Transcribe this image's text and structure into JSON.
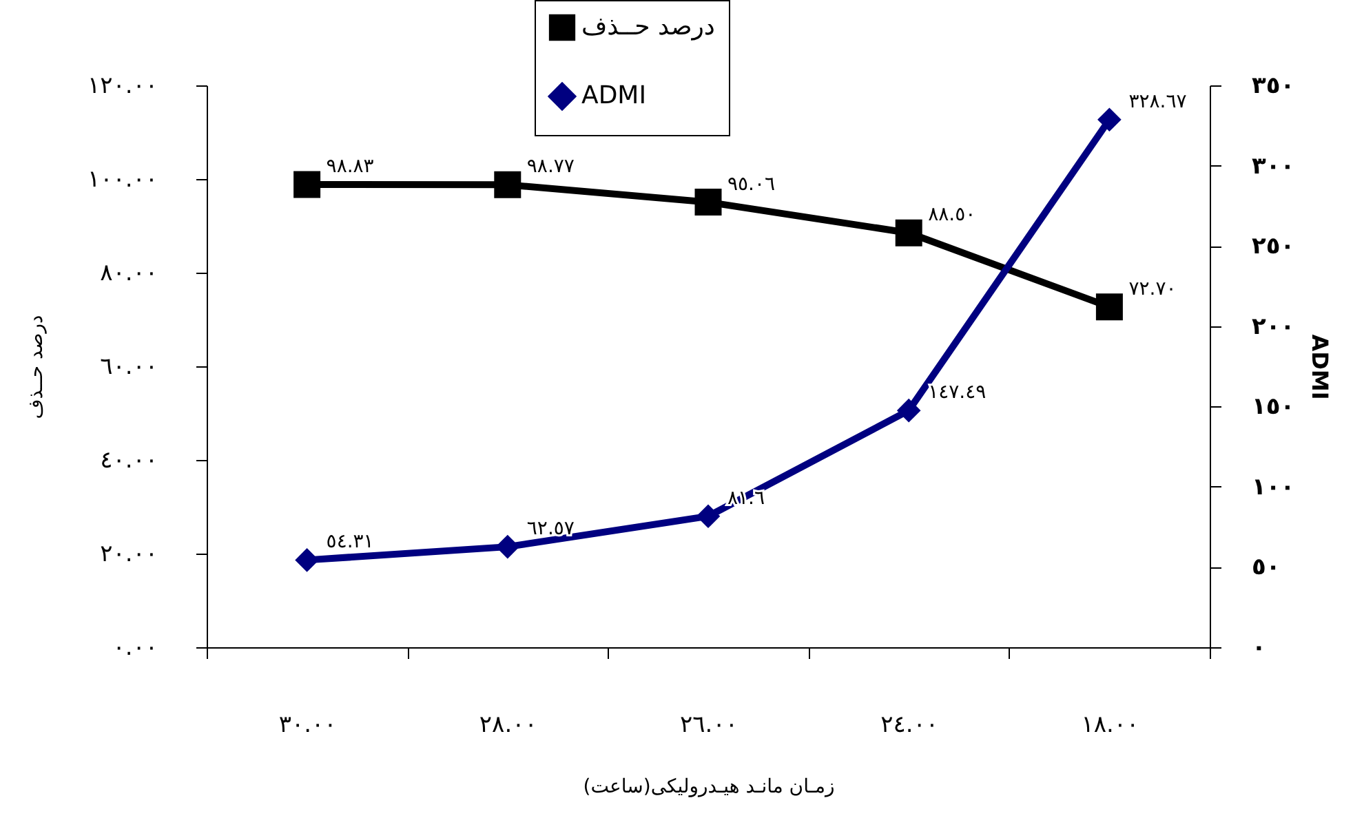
{
  "chart_data": {
    "type": "line",
    "xlabel": "زمـان مانـد هیـدرولیکی(ساعت)",
    "ylabel": "درصد حــذف",
    "y2label": "ADMI",
    "categories": [
      "٣٠.٠٠",
      "٢٨.٠٠",
      "٢٦.٠٠",
      "٢٤.٠٠",
      "١٨.٠٠"
    ],
    "series": [
      {
        "name": "درصد حــذف",
        "color": "#000000",
        "marker": "square",
        "values": [
          98.83,
          98.77,
          95.06,
          88.5,
          72.7
        ],
        "value_labels": [
          "٩٨.٨٣",
          "٩٨.٧٧",
          "٩٥.٠٦",
          "٨٨.٥٠",
          "٧٢.٧٠"
        ]
      },
      {
        "name": "ADMI",
        "color": "#000080",
        "marker": "diamond",
        "axis": "y2",
        "values": [
          54.31,
          62.57,
          81.6,
          147.49,
          328.67
        ],
        "value_labels": [
          "٥٤.٣١",
          "٦٢.٥٧",
          "٨١.٦",
          "١٤٧.٤٩",
          "٣٢٨.٦٧"
        ]
      }
    ],
    "ylim": [
      0,
      120
    ],
    "yticks": [
      {
        "value": 0,
        "label": "٠.٠٠"
      },
      {
        "value": 20,
        "label": "٢٠.٠٠"
      },
      {
        "value": 40,
        "label": "٤٠.٠٠"
      },
      {
        "value": 60,
        "label": "٦٠.٠٠"
      },
      {
        "value": 80,
        "label": "٨٠.٠٠"
      },
      {
        "value": 100,
        "label": "١٠٠.٠٠"
      },
      {
        "value": 120,
        "label": "١٢٠.٠٠"
      }
    ],
    "y2lim": [
      0,
      350
    ],
    "y2ticks": [
      {
        "value": 0,
        "label": "٠"
      },
      {
        "value": 50,
        "label": "٥٠"
      },
      {
        "value": 100,
        "label": "١٠٠"
      },
      {
        "value": 150,
        "label": "١٥٠"
      },
      {
        "value": 200,
        "label": "٢٠٠"
      },
      {
        "value": 250,
        "label": "٢٥٠"
      },
      {
        "value": 300,
        "label": "٣٠٠"
      },
      {
        "value": 350,
        "label": "٣٥٠"
      }
    ],
    "legend": "top",
    "grid": false,
    "line_style": "solid"
  }
}
